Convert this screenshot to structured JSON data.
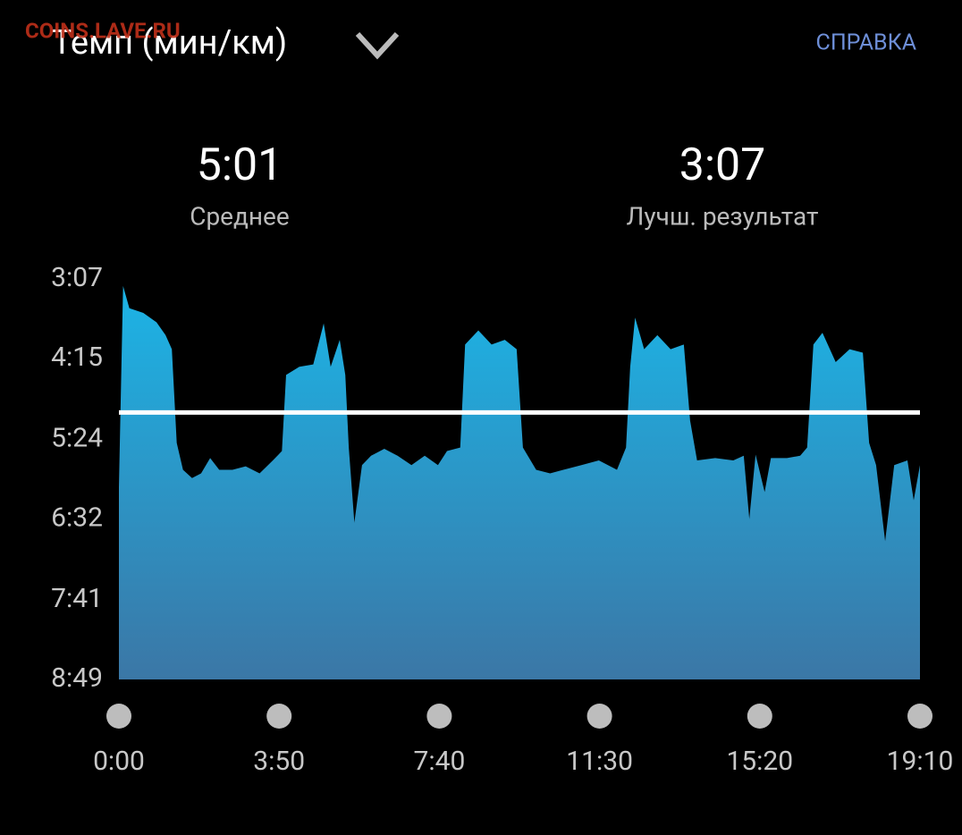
{
  "header": {
    "watermark": "COINS.LAVE.RU",
    "title": "Темп (мин/км)",
    "help": "СПРАВКА"
  },
  "chart_data": {
    "type": "area",
    "stats": [
      {
        "value": 301,
        "label": "5:01",
        "name": "Среднее"
      },
      {
        "value": 187,
        "label": "3:07",
        "name": "Лучш. результат"
      }
    ],
    "x": [
      0,
      6,
      15,
      35,
      54,
      67,
      76,
      83,
      92,
      105,
      118,
      131,
      144,
      163,
      182,
      202,
      221,
      234,
      240,
      259,
      279,
      294,
      304,
      317,
      325,
      330,
      338,
      349,
      362,
      381,
      400,
      420,
      439,
      458,
      471,
      490,
      497,
      516,
      535,
      554,
      571,
      580,
      599,
      619,
      638,
      664,
      689,
      715,
      728,
      734,
      741,
      754,
      773,
      792,
      811,
      820,
      830,
      856,
      882,
      897,
      905,
      914,
      927,
      936,
      959,
      978,
      988,
      997,
      1010,
      1029,
      1049,
      1068,
      1077,
      1087,
      1100,
      1113,
      1132,
      1141,
      1150
    ],
    "series": [
      {
        "color": "#1cb4e6",
        "color_bottom": "#3b77a6",
        "values": [
          365,
          193,
          212,
          216,
          224,
          235,
          247,
          327,
          350,
          357,
          353,
          340,
          350,
          350,
          347,
          353,
          342,
          334,
          269,
          262,
          260,
          225,
          262,
          239,
          269,
          331,
          395,
          346,
          338,
          332,
          338,
          346,
          338,
          346,
          334,
          331,
          243,
          231,
          243,
          239,
          247,
          331,
          350,
          353,
          350,
          346,
          342,
          350,
          331,
          262,
          220,
          247,
          235,
          247,
          243,
          308,
          342,
          340,
          342,
          338,
          392,
          337,
          369,
          340,
          340,
          338,
          331,
          243,
          233,
          258,
          247,
          250,
          327,
          346,
          411,
          346,
          342,
          376,
          346
        ]
      }
    ],
    "average_line_color": "#ffffff",
    "xlim": [
      0,
      1150
    ],
    "xticks": [
      {
        "value": 0,
        "label": "0:00"
      },
      {
        "value": 230,
        "label": "3:50"
      },
      {
        "value": 460,
        "label": "7:40"
      },
      {
        "value": 690,
        "label": "11:30"
      },
      {
        "value": 920,
        "label": "15:20"
      },
      {
        "value": 1150,
        "label": "19:10"
      }
    ],
    "ylim": [
      529,
      187
    ],
    "yticks": [
      {
        "value": 187,
        "label": "3:07"
      },
      {
        "value": 255,
        "label": "4:15"
      },
      {
        "value": 324,
        "label": "5:24"
      },
      {
        "value": 392,
        "label": "6:32"
      },
      {
        "value": 461,
        "label": "7:41"
      },
      {
        "value": 529,
        "label": "8:49"
      }
    ]
  }
}
